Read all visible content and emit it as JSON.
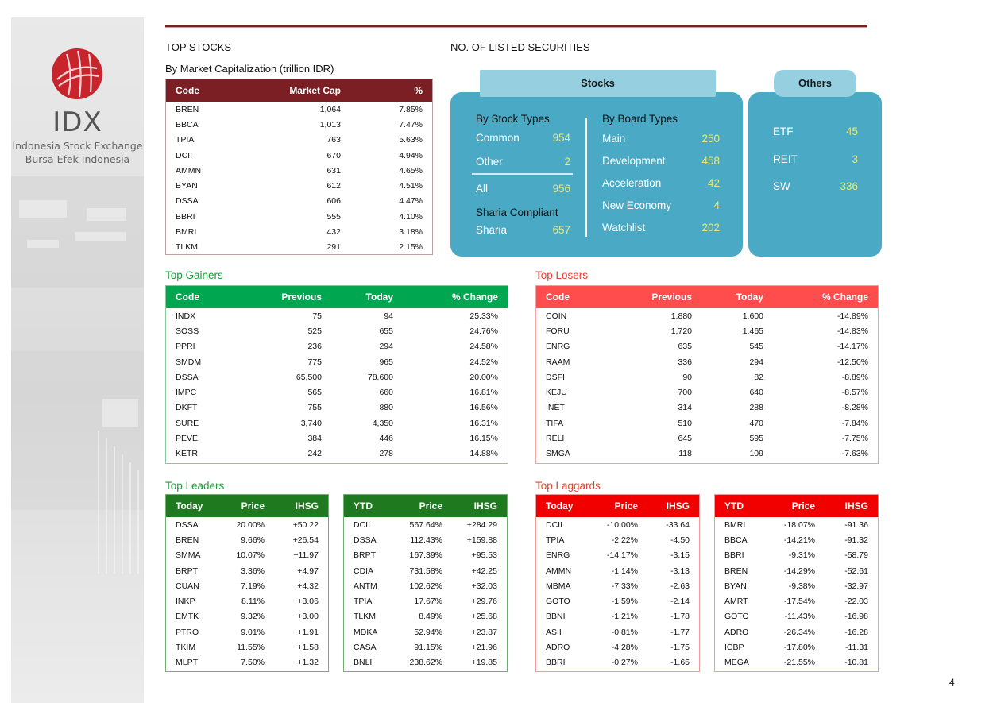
{
  "brand": {
    "name": "IDX",
    "line1": "Indonesia Stock Exchange",
    "line2": "Bursa Efek Indonesia"
  },
  "top_stocks": {
    "heading": "TOP STOCKS",
    "subheading": "By Market Capitalization (trillion IDR)",
    "columns": [
      "Code",
      "Market Cap",
      "%"
    ],
    "rows": [
      [
        "BREN",
        "1,064",
        "7.85%"
      ],
      [
        "BBCA",
        "1,013",
        "7.47%"
      ],
      [
        "TPIA",
        "763",
        "5.63%"
      ],
      [
        "DCII",
        "670",
        "4.94%"
      ],
      [
        "AMMN",
        "631",
        "4.65%"
      ],
      [
        "BYAN",
        "612",
        "4.51%"
      ],
      [
        "DSSA",
        "606",
        "4.47%"
      ],
      [
        "BBRI",
        "555",
        "4.10%"
      ],
      [
        "BMRI",
        "432",
        "3.18%"
      ],
      [
        "TLKM",
        "291",
        "2.15%"
      ]
    ]
  },
  "listed": {
    "heading": "NO. OF LISTED SECURITIES",
    "stocks_tab": "Stocks",
    "others_tab": "Others",
    "by_stock_types": "By Stock Types",
    "common_label": "Common",
    "common_value": "954",
    "other_label": "Other",
    "other_value": "2",
    "all_label": "All",
    "all_value": "956",
    "sharia_compliant": "Sharia Compliant",
    "sharia_label": "Sharia",
    "sharia_value": "657",
    "by_board_types": "By Board Types",
    "boards": [
      {
        "label": "Main",
        "value": "250"
      },
      {
        "label": "Development",
        "value": "458"
      },
      {
        "label": "Acceleration",
        "value": "42"
      },
      {
        "label": "New Economy",
        "value": "4"
      },
      {
        "label": "Watchlist",
        "value": "202"
      }
    ],
    "others": [
      {
        "label": "ETF",
        "value": "45"
      },
      {
        "label": "REIT",
        "value": "3"
      },
      {
        "label": "SW",
        "value": "336"
      }
    ]
  },
  "gainers": {
    "heading": "Top Gainers",
    "columns": [
      "Code",
      "Previous",
      "Today",
      "% Change"
    ],
    "rows": [
      [
        "INDX",
        "75",
        "94",
        "25.33%"
      ],
      [
        "SOSS",
        "525",
        "655",
        "24.76%"
      ],
      [
        "PPRI",
        "236",
        "294",
        "24.58%"
      ],
      [
        "SMDM",
        "775",
        "965",
        "24.52%"
      ],
      [
        "DSSA",
        "65,500",
        "78,600",
        "20.00%"
      ],
      [
        "IMPC",
        "565",
        "660",
        "16.81%"
      ],
      [
        "DKFT",
        "755",
        "880",
        "16.56%"
      ],
      [
        "SURE",
        "3,740",
        "4,350",
        "16.31%"
      ],
      [
        "PEVE",
        "384",
        "446",
        "16.15%"
      ],
      [
        "KETR",
        "242",
        "278",
        "14.88%"
      ]
    ]
  },
  "losers": {
    "heading": "Top Losers",
    "columns": [
      "Code",
      "Previous",
      "Today",
      "% Change"
    ],
    "rows": [
      [
        "COIN",
        "1,880",
        "1,600",
        "-14.89%"
      ],
      [
        "FORU",
        "1,720",
        "1,465",
        "-14.83%"
      ],
      [
        "ENRG",
        "635",
        "545",
        "-14.17%"
      ],
      [
        "RAAM",
        "336",
        "294",
        "-12.50%"
      ],
      [
        "DSFI",
        "90",
        "82",
        "-8.89%"
      ],
      [
        "KEJU",
        "700",
        "640",
        "-8.57%"
      ],
      [
        "INET",
        "314",
        "288",
        "-8.28%"
      ],
      [
        "TIFA",
        "510",
        "470",
        "-7.84%"
      ],
      [
        "RELI",
        "645",
        "595",
        "-7.75%"
      ],
      [
        "SMGA",
        "118",
        "109",
        "-7.63%"
      ]
    ]
  },
  "leaders": {
    "heading": "Top Leaders",
    "today": {
      "columns": [
        "Today",
        "Price",
        "IHSG"
      ],
      "rows": [
        [
          "DSSA",
          "20.00%",
          "+50.22"
        ],
        [
          "BREN",
          "9.66%",
          "+26.54"
        ],
        [
          "SMMA",
          "10.07%",
          "+11.97"
        ],
        [
          "BRPT",
          "3.36%",
          "+4.97"
        ],
        [
          "CUAN",
          "7.19%",
          "+4.32"
        ],
        [
          "INKP",
          "8.11%",
          "+3.06"
        ],
        [
          "EMTK",
          "9.32%",
          "+3.00"
        ],
        [
          "PTRO",
          "9.01%",
          "+1.91"
        ],
        [
          "TKIM",
          "11.55%",
          "+1.58"
        ],
        [
          "MLPT",
          "7.50%",
          "+1.32"
        ]
      ]
    },
    "ytd": {
      "columns": [
        "YTD",
        "Price",
        "IHSG"
      ],
      "rows": [
        [
          "DCII",
          "567.64%",
          "+284.29"
        ],
        [
          "DSSA",
          "112.43%",
          "+159.88"
        ],
        [
          "BRPT",
          "167.39%",
          "+95.53"
        ],
        [
          "CDIA",
          "731.58%",
          "+42.25"
        ],
        [
          "ANTM",
          "102.62%",
          "+32.03"
        ],
        [
          "TPIA",
          "17.67%",
          "+29.76"
        ],
        [
          "TLKM",
          "8.49%",
          "+25.68"
        ],
        [
          "MDKA",
          "52.94%",
          "+23.87"
        ],
        [
          "CASA",
          "91.15%",
          "+21.96"
        ],
        [
          "BNLI",
          "238.62%",
          "+19.85"
        ]
      ]
    }
  },
  "laggards": {
    "heading": "Top Laggards",
    "today": {
      "columns": [
        "Today",
        "Price",
        "IHSG"
      ],
      "rows": [
        [
          "DCII",
          "-10.00%",
          "-33.64"
        ],
        [
          "TPIA",
          "-2.22%",
          "-4.50"
        ],
        [
          "ENRG",
          "-14.17%",
          "-3.15"
        ],
        [
          "AMMN",
          "-1.14%",
          "-3.13"
        ],
        [
          "MBMA",
          "-7.33%",
          "-2.63"
        ],
        [
          "GOTO",
          "-1.59%",
          "-2.14"
        ],
        [
          "BBNI",
          "-1.21%",
          "-1.78"
        ],
        [
          "ASII",
          "-0.81%",
          "-1.77"
        ],
        [
          "ADRO",
          "-4.28%",
          "-1.75"
        ],
        [
          "BBRI",
          "-0.27%",
          "-1.65"
        ]
      ]
    },
    "ytd": {
      "columns": [
        "YTD",
        "Price",
        "IHSG"
      ],
      "rows": [
        [
          "BMRI",
          "-18.07%",
          "-91.36"
        ],
        [
          "BBCA",
          "-14.21%",
          "-91.32"
        ],
        [
          "BBRI",
          "-9.31%",
          "-58.79"
        ],
        [
          "BREN",
          "-14.29%",
          "-52.61"
        ],
        [
          "BYAN",
          "-9.38%",
          "-32.97"
        ],
        [
          "AMRT",
          "-17.54%",
          "-22.03"
        ],
        [
          "GOTO",
          "-11.43%",
          "-16.98"
        ],
        [
          "ADRO",
          "-26.34%",
          "-16.28"
        ],
        [
          "ICBP",
          "-17.80%",
          "-11.31"
        ],
        [
          "MEGA",
          "-21.55%",
          "-10.81"
        ]
      ]
    }
  },
  "page_number": "4",
  "colors": {
    "maroon": "#7b1f24",
    "green": "#00a650",
    "dark_green": "#1f7a1f",
    "red": "#ff4d4d",
    "bright_red": "#f20000",
    "teal": "#4aaac6",
    "teal_light": "#95cfe0",
    "value_yellow": "#e4e97a"
  }
}
